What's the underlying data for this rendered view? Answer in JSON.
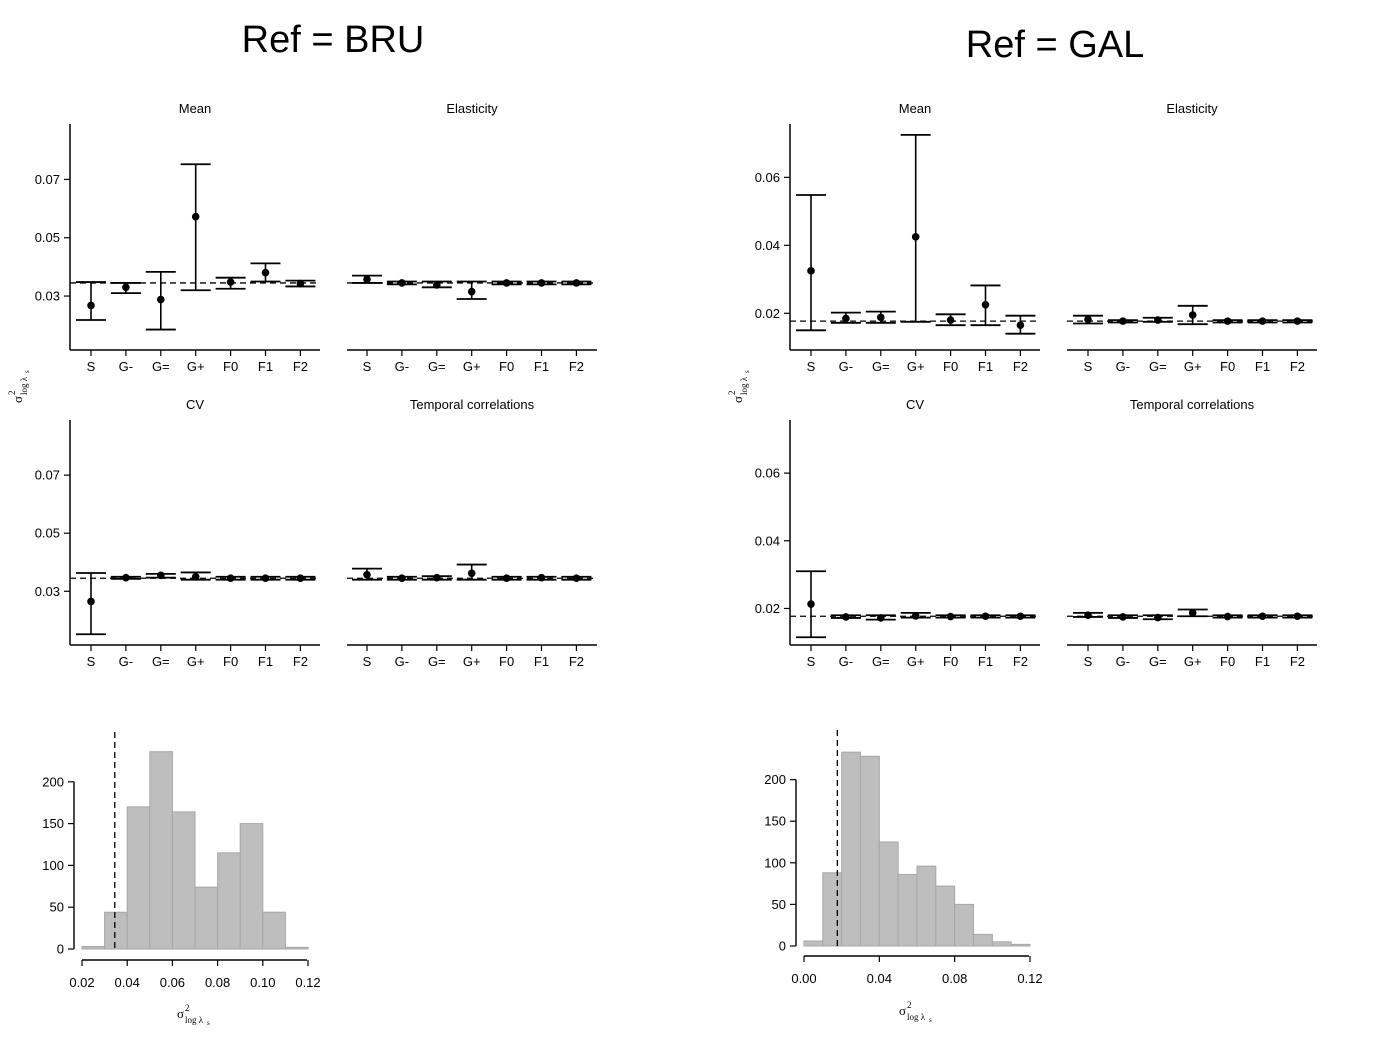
{
  "titles": {
    "left": "Ref = BRU",
    "right": "Ref = GAL"
  },
  "panel_titles": [
    "Mean",
    "Elasticity",
    "CV",
    "Temporal correlations"
  ],
  "axis_symbol": {
    "sigma": "σ",
    "sup": "2",
    "sub": "log λ",
    "subsub": "s"
  },
  "chart_data": [
    {
      "type": "errorbar",
      "group": "Ref = BRU",
      "categories": [
        "S",
        "G-",
        "G=",
        "G+",
        "F0",
        "F1",
        "F2"
      ],
      "y_ticks": [
        0.03,
        0.05,
        0.07
      ],
      "ylim": [
        0.0115,
        0.089
      ],
      "reference": 0.0345,
      "panels": [
        {
          "title": "Mean",
          "points": [
            0.0268,
            0.033,
            0.0288,
            0.0572,
            0.0348,
            0.038,
            0.0343
          ],
          "lower": [
            0.0218,
            0.031,
            0.0185,
            0.032,
            0.0325,
            0.035,
            0.0333
          ],
          "upper": [
            0.0348,
            0.0345,
            0.0383,
            0.0752,
            0.0363,
            0.0412,
            0.0353
          ]
        },
        {
          "title": "Elasticity",
          "points": [
            0.0357,
            0.0345,
            0.0338,
            0.0315,
            0.0345,
            0.0345,
            0.0345
          ],
          "lower": [
            0.0345,
            0.034,
            0.033,
            0.029,
            0.034,
            0.034,
            0.034
          ],
          "upper": [
            0.037,
            0.035,
            0.035,
            0.035,
            0.035,
            0.035,
            0.035
          ]
        },
        {
          "title": "CV",
          "points": [
            0.0265,
            0.0347,
            0.0355,
            0.035,
            0.0345,
            0.0345,
            0.0345
          ],
          "lower": [
            0.0152,
            0.0343,
            0.0347,
            0.034,
            0.034,
            0.034,
            0.034
          ],
          "upper": [
            0.0363,
            0.035,
            0.036,
            0.0365,
            0.035,
            0.035,
            0.035
          ]
        },
        {
          "title": "Temporal correlations",
          "points": [
            0.0357,
            0.0345,
            0.0347,
            0.0362,
            0.0345,
            0.0347,
            0.0345
          ],
          "lower": [
            0.034,
            0.034,
            0.034,
            0.034,
            0.034,
            0.034,
            0.034
          ],
          "upper": [
            0.0378,
            0.035,
            0.0352,
            0.0392,
            0.035,
            0.035,
            0.035
          ]
        }
      ]
    },
    {
      "type": "errorbar",
      "group": "Ref = GAL",
      "categories": [
        "S",
        "G-",
        "G=",
        "G+",
        "F0",
        "F1",
        "F2"
      ],
      "y_ticks": [
        0.02,
        0.04,
        0.06
      ],
      "ylim": [
        0.0092,
        0.0757
      ],
      "reference": 0.0177,
      "panels": [
        {
          "title": "Mean",
          "points": [
            0.0325,
            0.0185,
            0.0188,
            0.0425,
            0.018,
            0.0225,
            0.0165
          ],
          "lower": [
            0.015,
            0.0172,
            0.0172,
            0.0175,
            0.0165,
            0.0165,
            0.014
          ],
          "upper": [
            0.0548,
            0.0202,
            0.0205,
            0.0725,
            0.0197,
            0.0282,
            0.0193
          ]
        },
        {
          "title": "Elasticity",
          "points": [
            0.0182,
            0.0177,
            0.018,
            0.0195,
            0.0177,
            0.0177,
            0.0177
          ],
          "lower": [
            0.017,
            0.0173,
            0.0175,
            0.0168,
            0.0173,
            0.0173,
            0.0173
          ],
          "upper": [
            0.0193,
            0.018,
            0.0187,
            0.0222,
            0.018,
            0.018,
            0.018
          ]
        },
        {
          "title": "CV",
          "points": [
            0.0213,
            0.0175,
            0.0172,
            0.0178,
            0.0176,
            0.0177,
            0.0177
          ],
          "lower": [
            0.0115,
            0.0172,
            0.0167,
            0.0173,
            0.0173,
            0.0173,
            0.0173
          ],
          "upper": [
            0.031,
            0.018,
            0.018,
            0.0187,
            0.018,
            0.018,
            0.018
          ]
        },
        {
          "title": "Temporal correlations",
          "points": [
            0.018,
            0.0175,
            0.0173,
            0.0187,
            0.0176,
            0.0177,
            0.0177
          ],
          "lower": [
            0.0175,
            0.0172,
            0.0168,
            0.0177,
            0.0173,
            0.0173,
            0.0173
          ],
          "upper": [
            0.0187,
            0.018,
            0.018,
            0.0197,
            0.018,
            0.018,
            0.018
          ]
        }
      ]
    },
    {
      "type": "histogram",
      "group": "Ref = BRU",
      "bin_edges": [
        0.02,
        0.03,
        0.04,
        0.05,
        0.06,
        0.07,
        0.08,
        0.09,
        0.1,
        0.11,
        0.12
      ],
      "counts": [
        3,
        44,
        170,
        236,
        164,
        74,
        115,
        150,
        44,
        2
      ],
      "x_ticks": [
        0.02,
        0.04,
        0.06,
        0.08,
        0.1,
        0.12
      ],
      "x_tick_labels": [
        "0.02",
        "0.04",
        "0.06",
        "0.08",
        "0.10",
        "0.12"
      ],
      "y_ticks": [
        0,
        50,
        100,
        150,
        200
      ],
      "reference": 0.0345,
      "ylim": [
        0,
        250
      ]
    },
    {
      "type": "histogram",
      "group": "Ref = GAL",
      "bin_edges": [
        0.0,
        0.01,
        0.02,
        0.03,
        0.04,
        0.05,
        0.06,
        0.07,
        0.08,
        0.09,
        0.1,
        0.11,
        0.12
      ],
      "counts": [
        6,
        88,
        233,
        228,
        125,
        86,
        96,
        72,
        50,
        14,
        5,
        2
      ],
      "x_ticks": [
        0.0,
        0.04,
        0.08,
        0.12
      ],
      "x_tick_labels": [
        "0.00",
        "0.04",
        "0.08",
        "0.12"
      ],
      "y_ticks": [
        0,
        50,
        100,
        150,
        200
      ],
      "reference": 0.0177,
      "ylim": [
        0,
        250
      ]
    }
  ]
}
